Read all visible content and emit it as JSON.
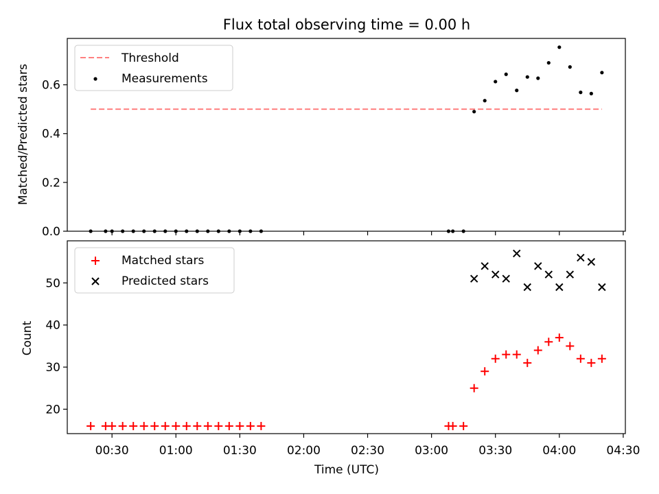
{
  "chart_data": [
    {
      "type": "scatter",
      "title": "Flux total observing time = 0.00 h",
      "xlabel": "",
      "ylabel": "Matched/Predicted stars",
      "ylim": [
        0,
        0.79
      ],
      "yticks": [
        "0.0",
        "0.2",
        "0.4",
        "0.6"
      ],
      "legend_position": "top-left",
      "threshold": {
        "name": "Threshold",
        "y": 0.5,
        "x_start": "00:20",
        "x_end": "04:20",
        "color": "#ff7f7f",
        "style": "dashed"
      },
      "series": [
        {
          "name": "Measurements",
          "color": "#000000",
          "marker": "dot",
          "x": [
            "00:20",
            "00:27",
            "00:30",
            "00:35",
            "00:40",
            "00:45",
            "00:50",
            "00:55",
            "01:00",
            "01:05",
            "01:10",
            "01:15",
            "01:20",
            "01:25",
            "01:30",
            "01:35",
            "01:40",
            "03:08",
            "03:10",
            "03:15",
            "03:20",
            "03:25",
            "03:30",
            "03:35",
            "03:40",
            "03:45",
            "03:50",
            "03:55",
            "04:00",
            "04:05",
            "04:10",
            "04:15",
            "04:20"
          ],
          "y": [
            0,
            0,
            0,
            0,
            0,
            0,
            0,
            0,
            0,
            0,
            0,
            0,
            0,
            0,
            0,
            0,
            0,
            0,
            0,
            0,
            0.49,
            0.535,
            0.613,
            0.643,
            0.577,
            0.632,
            0.627,
            0.69,
            0.754,
            0.673,
            0.569,
            0.564,
            0.65
          ]
        }
      ]
    },
    {
      "type": "scatter",
      "title": "",
      "xlabel": "Time (UTC)",
      "ylabel": "Count",
      "ylim": [
        14.2,
        60
      ],
      "yticks": [
        "20",
        "30",
        "40",
        "50"
      ],
      "xlim": [
        "00:09",
        "04:31"
      ],
      "xticks": [
        "00:30",
        "01:00",
        "01:30",
        "02:00",
        "02:30",
        "03:00",
        "03:30",
        "04:00",
        "04:30"
      ],
      "legend_position": "top-left",
      "series": [
        {
          "name": "Matched stars",
          "color": "#ff0000",
          "marker": "plus",
          "x": [
            "00:20",
            "00:27",
            "00:30",
            "00:35",
            "00:40",
            "00:45",
            "00:50",
            "00:55",
            "01:00",
            "01:05",
            "01:10",
            "01:15",
            "01:20",
            "01:25",
            "01:30",
            "01:35",
            "01:40",
            "03:08",
            "03:10",
            "03:15",
            "03:20",
            "03:25",
            "03:30",
            "03:35",
            "03:40",
            "03:45",
            "03:50",
            "03:55",
            "04:00",
            "04:05",
            "04:10",
            "04:15",
            "04:20"
          ],
          "y": [
            16,
            16,
            16,
            16,
            16,
            16,
            16,
            16,
            16,
            16,
            16,
            16,
            16,
            16,
            16,
            16,
            16,
            16,
            16,
            16,
            25,
            29,
            32,
            33,
            33,
            31,
            34,
            36,
            37,
            35,
            32,
            31,
            32
          ]
        },
        {
          "name": "Predicted stars",
          "color": "#000000",
          "marker": "x",
          "x": [
            "03:20",
            "03:25",
            "03:30",
            "03:35",
            "03:40",
            "03:45",
            "03:50",
            "03:55",
            "04:00",
            "04:05",
            "04:10",
            "04:15",
            "04:20"
          ],
          "y": [
            51,
            54,
            52,
            51,
            57,
            49,
            54,
            52,
            49,
            52,
            56,
            55,
            49
          ]
        }
      ]
    }
  ]
}
